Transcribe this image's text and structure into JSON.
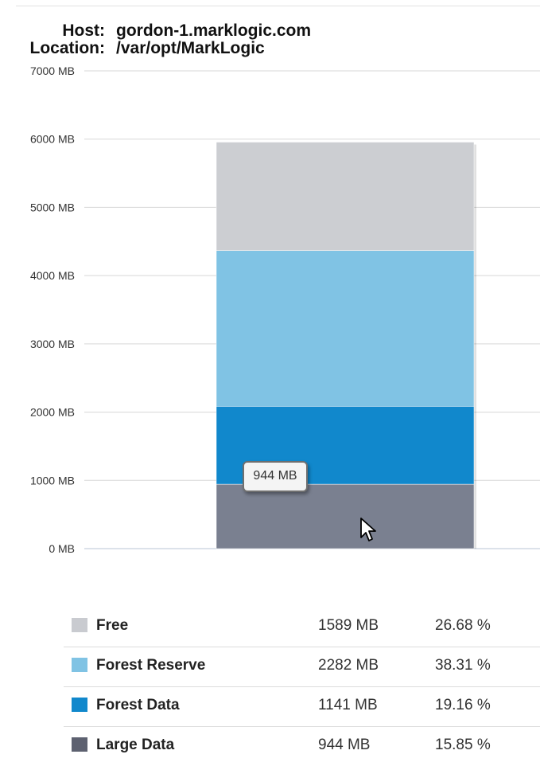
{
  "header": {
    "host_label": "Host:",
    "host_value": "gordon-1.marklogic.com",
    "location_label": "Location:",
    "location_value": "/var/opt/MarkLogic"
  },
  "chart_data": {
    "type": "bar",
    "stacked": true,
    "categories": [
      ""
    ],
    "ylim": [
      0,
      7000
    ],
    "yticks": [
      "0 MB",
      "1000 MB",
      "2000 MB",
      "3000 MB",
      "4000 MB",
      "5000 MB",
      "6000 MB",
      "7000 MB"
    ],
    "grid": true,
    "series": [
      {
        "name": "Large Data",
        "values": [
          944
        ],
        "color": "#7a8090"
      },
      {
        "name": "Forest Data",
        "values": [
          1141
        ],
        "color": "#1188cc"
      },
      {
        "name": "Forest Reserve",
        "values": [
          2282
        ],
        "color": "#80c3e4"
      },
      {
        "name": "Free",
        "values": [
          1589
        ],
        "color": "#ccced2"
      }
    ],
    "tooltip": "944 MB"
  },
  "legend": [
    {
      "name": "Free",
      "value": "1589 MB",
      "percent": "26.68 %",
      "color": "#c9cbd0"
    },
    {
      "name": "Forest Reserve",
      "value": "2282 MB",
      "percent": "38.31 %",
      "color": "#80c3e4"
    },
    {
      "name": "Forest Data",
      "value": "1141 MB",
      "percent": "19.16 %",
      "color": "#1188cc"
    },
    {
      "name": "Large Data",
      "value": "944 MB",
      "percent": "15.85 %",
      "color": "#5d6170"
    }
  ]
}
